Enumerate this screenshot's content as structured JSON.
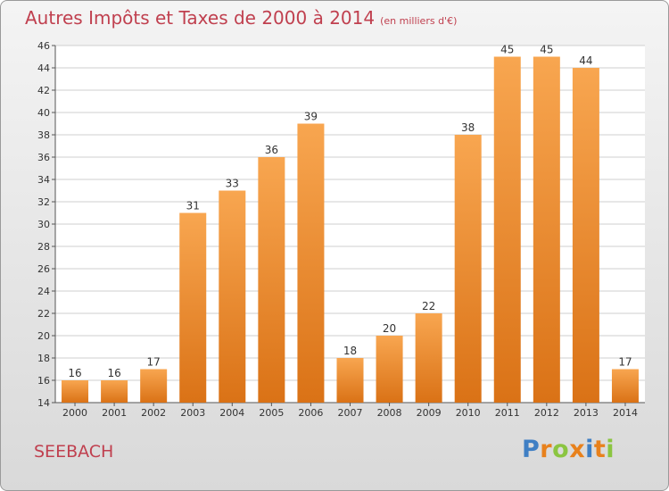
{
  "header": {
    "title": "Autres Impôts et Taxes de 2000 à 2014",
    "unit": "(en milliers d'€)"
  },
  "footer": {
    "commune": "SEEBACH",
    "logo": "Proxiti"
  },
  "colors": {
    "title": "#c0404f",
    "bar_light": "#f8a650",
    "bar_dark": "#da7216",
    "grid": "#cfcfcf",
    "logo_letters": [
      "#3f7fc4",
      "#e8811c",
      "#8bc541",
      "#e8811c",
      "#3f7fc4",
      "#e8811c",
      "#8bc541"
    ]
  },
  "chart_data": {
    "type": "bar",
    "title": "Autres Impôts et Taxes de 2000 à 2014",
    "subtitle": "(en milliers d'€)",
    "categories": [
      "2000",
      "2001",
      "2002",
      "2003",
      "2004",
      "2005",
      "2006",
      "2007",
      "2008",
      "2009",
      "2010",
      "2011",
      "2012",
      "2013",
      "2014"
    ],
    "values": [
      16,
      16,
      17,
      31,
      33,
      36,
      39,
      18,
      20,
      22,
      38,
      45,
      45,
      44,
      17
    ],
    "ylim": [
      14,
      46
    ],
    "yticks": [
      14,
      16,
      18,
      20,
      22,
      24,
      26,
      28,
      30,
      32,
      34,
      36,
      38,
      40,
      42,
      44,
      46
    ],
    "grid": true,
    "xlabel": "",
    "ylabel": ""
  }
}
